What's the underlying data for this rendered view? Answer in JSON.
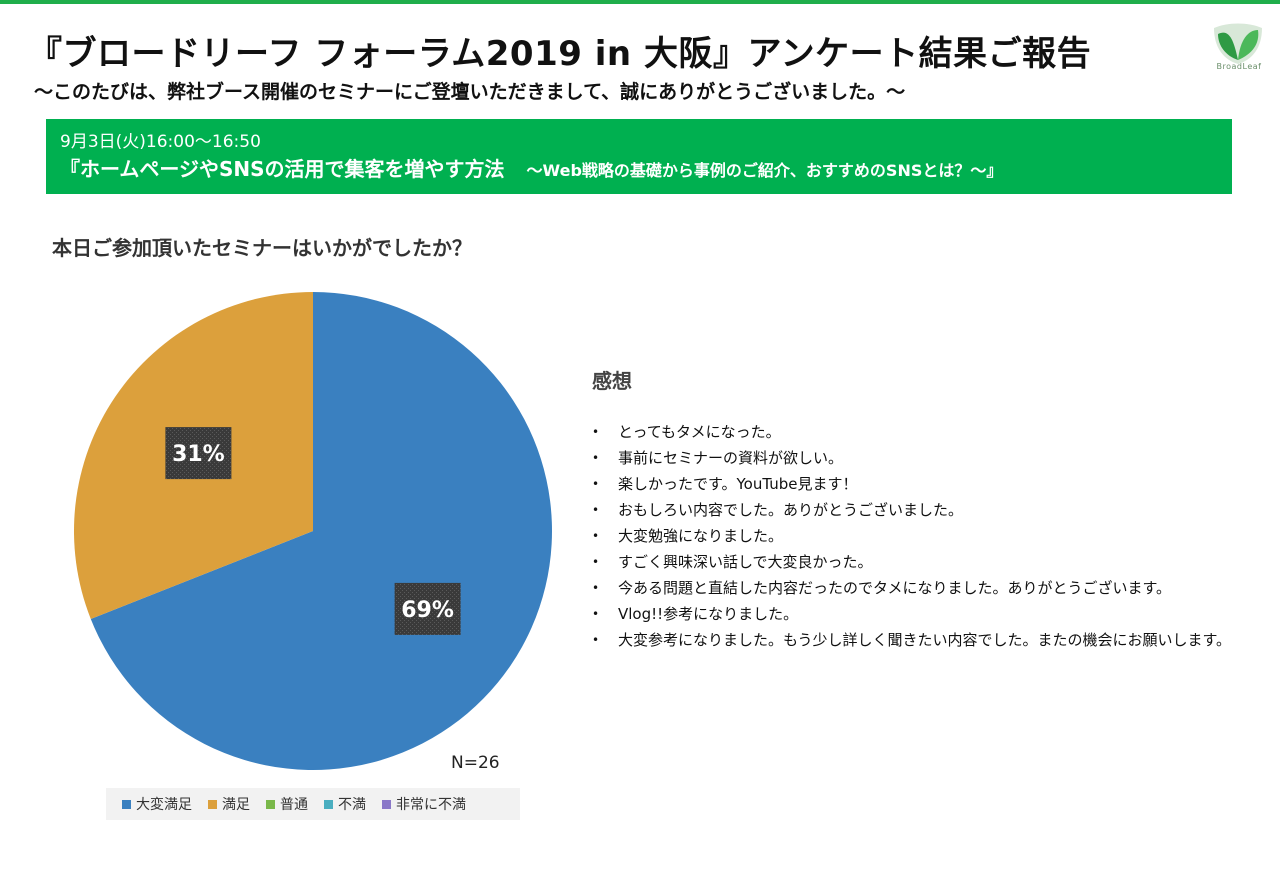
{
  "header": {
    "title": "『ブロードリーフ フォーラム2019 in 大阪』アンケート結果ご報告",
    "subtitle": "～このたびは、弊社ブース開催のセミナーにご登壇いただきまして、誠にありがとうございました。～",
    "logo_text": "BroadLeaf"
  },
  "banner": {
    "date": "9月3日(火)16:00～16:50",
    "seminar_title": "『ホームページやSNSの活用で集客を増やす方法",
    "seminar_subtitle": "～Web戦略の基礎から事例のご紹介、おすすめのSNSとは？～』"
  },
  "question": "本日ご参加頂いたセミナーはいかがでしたか？",
  "sample_size": "N=26",
  "colors": {
    "green": "#00b050",
    "blue": "#3a80c0",
    "orange": "#dca03c",
    "light_green": "#7ab84a",
    "teal": "#4aaec0",
    "purple": "#8a78c8"
  },
  "chart_data": {
    "type": "pie",
    "categories": [
      "大変満足",
      "満足",
      "普通",
      "不満",
      "非常に不満"
    ],
    "values": [
      69,
      31,
      0,
      0,
      0
    ],
    "data_labels": [
      "69%",
      "31%",
      "",
      "",
      ""
    ],
    "legend_position": "bottom"
  },
  "comments": {
    "title": "感想",
    "items": [
      "とってもタメになった。",
      "事前にセミナーの資料が欲しい。",
      "楽しかったです。YouTube見ます！",
      "おもしろい内容でした。ありがとうございました。",
      "大変勉強になりました。",
      "すごく興味深い話しで大変良かった。",
      "今ある問題と直結した内容だったのでタメになりました。ありがとうございます。",
      "Vlog!!参考になりました。",
      "大変参考になりました。もう少し詳しく聞きたい内容でした。またの機会にお願いします。"
    ]
  }
}
